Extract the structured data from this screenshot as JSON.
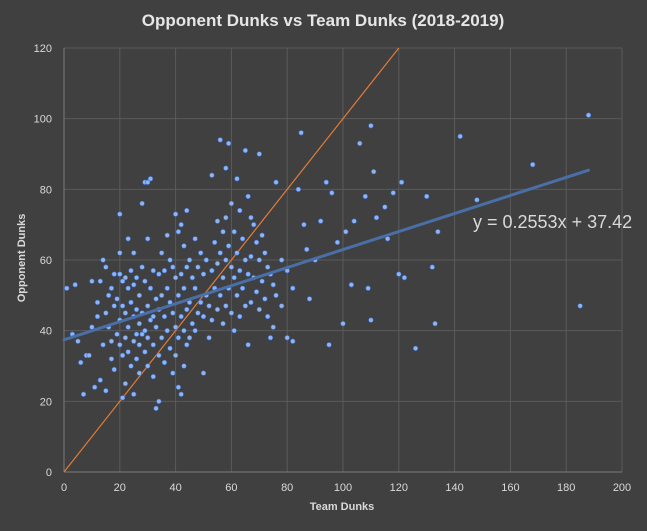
{
  "chart_data": {
    "type": "scatter",
    "title": "Opponent Dunks vs Team Dunks (2018-2019)",
    "xlabel": "Team Dunks",
    "ylabel": "Opponent Dunks",
    "xlim": [
      0,
      200
    ],
    "ylim": [
      0,
      120
    ],
    "xticks": [
      "0",
      "20",
      "40",
      "60",
      "80",
      "100",
      "120",
      "140",
      "160",
      "180",
      "200"
    ],
    "yticks": [
      "0",
      "20",
      "40",
      "60",
      "80",
      "100",
      "120"
    ],
    "grid": true,
    "legend": "none",
    "colors": {
      "points": "#8fb4f0",
      "trendline": "#4a6fa8",
      "reference_line": "#e07b39",
      "background": "#404040"
    },
    "trendline": {
      "type": "linear",
      "slope": 0.2553,
      "intercept": 37.42,
      "equation": "y = 0.2553x + 37.42"
    },
    "reference_line": {
      "type": "identity",
      "from": [
        0,
        0
      ],
      "to": [
        120,
        120
      ]
    },
    "points": [
      [
        1,
        52
      ],
      [
        3,
        39
      ],
      [
        4,
        53
      ],
      [
        5,
        37
      ],
      [
        6,
        31
      ],
      [
        7,
        22
      ],
      [
        8,
        33
      ],
      [
        9,
        33
      ],
      [
        10,
        54
      ],
      [
        10,
        41
      ],
      [
        11,
        24
      ],
      [
        12,
        48
      ],
      [
        12,
        44
      ],
      [
        13,
        54
      ],
      [
        13,
        26
      ],
      [
        14,
        60
      ],
      [
        14,
        36
      ],
      [
        15,
        58
      ],
      [
        15,
        45
      ],
      [
        15,
        23
      ],
      [
        16,
        50
      ],
      [
        16,
        41
      ],
      [
        17,
        52
      ],
      [
        17,
        37
      ],
      [
        17,
        32
      ],
      [
        18,
        56
      ],
      [
        18,
        47
      ],
      [
        18,
        29
      ],
      [
        19,
        49
      ],
      [
        19,
        39
      ],
      [
        20,
        73
      ],
      [
        20,
        62
      ],
      [
        20,
        56
      ],
      [
        20,
        43
      ],
      [
        20,
        36
      ],
      [
        21,
        54
      ],
      [
        21,
        47
      ],
      [
        21,
        33
      ],
      [
        21,
        21
      ],
      [
        22,
        55
      ],
      [
        22,
        45
      ],
      [
        22,
        38
      ],
      [
        22,
        25
      ],
      [
        23,
        66
      ],
      [
        23,
        52
      ],
      [
        23,
        41
      ],
      [
        23,
        34
      ],
      [
        24,
        57
      ],
      [
        24,
        48
      ],
      [
        24,
        30
      ],
      [
        25,
        62
      ],
      [
        25,
        53
      ],
      [
        25,
        44
      ],
      [
        25,
        37
      ],
      [
        25,
        22
      ],
      [
        26,
        55
      ],
      [
        26,
        46
      ],
      [
        26,
        39
      ],
      [
        26,
        32
      ],
      [
        27,
        50
      ],
      [
        27,
        42
      ],
      [
        27,
        36
      ],
      [
        27,
        28
      ],
      [
        28,
        76
      ],
      [
        28,
        58
      ],
      [
        28,
        45
      ],
      [
        28,
        39
      ],
      [
        29,
        82
      ],
      [
        29,
        54
      ],
      [
        29,
        40
      ],
      [
        29,
        34
      ],
      [
        30,
        82
      ],
      [
        30,
        66
      ],
      [
        30,
        47
      ],
      [
        30,
        38
      ],
      [
        30,
        30
      ],
      [
        31,
        83
      ],
      [
        31,
        52
      ],
      [
        31,
        43
      ],
      [
        32,
        57
      ],
      [
        32,
        44
      ],
      [
        32,
        36
      ],
      [
        32,
        27
      ],
      [
        33,
        49
      ],
      [
        33,
        41
      ],
      [
        33,
        18
      ],
      [
        34,
        56
      ],
      [
        34,
        46
      ],
      [
        34,
        33
      ],
      [
        34,
        20
      ],
      [
        35,
        62
      ],
      [
        35,
        50
      ],
      [
        35,
        38
      ],
      [
        36,
        57
      ],
      [
        36,
        44
      ],
      [
        36,
        31
      ],
      [
        37,
        67
      ],
      [
        37,
        52
      ],
      [
        37,
        40
      ],
      [
        38,
        60
      ],
      [
        38,
        48
      ],
      [
        38,
        35
      ],
      [
        39,
        58
      ],
      [
        39,
        45
      ],
      [
        39,
        28
      ],
      [
        40,
        73
      ],
      [
        40,
        55
      ],
      [
        40,
        41
      ],
      [
        40,
        33
      ],
      [
        41,
        68
      ],
      [
        41,
        50
      ],
      [
        41,
        38
      ],
      [
        41,
        24
      ],
      [
        42,
        70
      ],
      [
        42,
        56
      ],
      [
        42,
        44
      ],
      [
        42,
        22
      ],
      [
        43,
        64
      ],
      [
        43,
        52
      ],
      [
        43,
        40
      ],
      [
        43,
        30
      ],
      [
        44,
        74
      ],
      [
        44,
        58
      ],
      [
        44,
        46
      ],
      [
        44,
        36
      ],
      [
        45,
        60
      ],
      [
        45,
        48
      ],
      [
        45,
        38
      ],
      [
        46,
        55
      ],
      [
        46,
        42
      ],
      [
        47,
        66
      ],
      [
        47,
        52
      ],
      [
        47,
        40
      ],
      [
        48,
        58
      ],
      [
        48,
        45
      ],
      [
        49,
        62
      ],
      [
        49,
        48
      ],
      [
        50,
        56
      ],
      [
        50,
        44
      ],
      [
        50,
        28
      ],
      [
        51,
        60
      ],
      [
        51,
        50
      ],
      [
        52,
        47
      ],
      [
        52,
        38
      ],
      [
        53,
        84
      ],
      [
        53,
        57
      ],
      [
        53,
        43
      ],
      [
        54,
        65
      ],
      [
        54,
        52
      ],
      [
        55,
        71
      ],
      [
        55,
        59
      ],
      [
        55,
        46
      ],
      [
        56,
        94
      ],
      [
        56,
        62
      ],
      [
        56,
        50
      ],
      [
        57,
        68
      ],
      [
        57,
        55
      ],
      [
        57,
        42
      ],
      [
        58,
        86
      ],
      [
        58,
        72
      ],
      [
        58,
        60
      ],
      [
        58,
        47
      ],
      [
        59,
        93
      ],
      [
        59,
        64
      ],
      [
        59,
        52
      ],
      [
        60,
        76
      ],
      [
        60,
        58
      ],
      [
        60,
        45
      ],
      [
        61,
        68
      ],
      [
        61,
        55
      ],
      [
        61,
        40
      ],
      [
        62,
        83
      ],
      [
        62,
        62
      ],
      [
        62,
        50
      ],
      [
        63,
        74
      ],
      [
        63,
        57
      ],
      [
        63,
        44
      ],
      [
        64,
        66
      ],
      [
        64,
        52
      ],
      [
        65,
        91
      ],
      [
        65,
        60
      ],
      [
        65,
        47
      ],
      [
        66,
        78
      ],
      [
        66,
        56
      ],
      [
        66,
        36
      ],
      [
        67,
        72
      ],
      [
        67,
        61
      ],
      [
        67,
        48
      ],
      [
        68,
        70
      ],
      [
        68,
        55
      ],
      [
        69,
        65
      ],
      [
        69,
        51
      ],
      [
        70,
        90
      ],
      [
        70,
        60
      ],
      [
        70,
        46
      ],
      [
        71,
        67
      ],
      [
        71,
        54
      ],
      [
        72,
        62
      ],
      [
        72,
        49
      ],
      [
        73,
        58
      ],
      [
        73,
        44
      ],
      [
        74,
        56
      ],
      [
        74,
        38
      ],
      [
        75,
        53
      ],
      [
        75,
        41
      ],
      [
        76,
        82
      ],
      [
        76,
        50
      ],
      [
        78,
        60
      ],
      [
        78,
        47
      ],
      [
        80,
        57
      ],
      [
        80,
        38
      ],
      [
        82,
        52
      ],
      [
        82,
        37
      ],
      [
        84,
        80
      ],
      [
        85,
        96
      ],
      [
        86,
        70
      ],
      [
        87,
        63
      ],
      [
        88,
        49
      ],
      [
        90,
        60
      ],
      [
        92,
        71
      ],
      [
        94,
        82
      ],
      [
        95,
        36
      ],
      [
        96,
        79
      ],
      [
        98,
        65
      ],
      [
        100,
        42
      ],
      [
        101,
        68
      ],
      [
        103,
        53
      ],
      [
        104,
        71
      ],
      [
        106,
        93
      ],
      [
        108,
        78
      ],
      [
        109,
        52
      ],
      [
        110,
        98
      ],
      [
        110,
        43
      ],
      [
        111,
        85
      ],
      [
        112,
        72
      ],
      [
        115,
        75
      ],
      [
        116,
        66
      ],
      [
        118,
        79
      ],
      [
        120,
        56
      ],
      [
        121,
        82
      ],
      [
        122,
        55
      ],
      [
        126,
        35
      ],
      [
        130,
        78
      ],
      [
        132,
        58
      ],
      [
        133,
        42
      ],
      [
        134,
        68
      ],
      [
        142,
        95
      ],
      [
        148,
        77
      ],
      [
        168,
        87
      ],
      [
        185,
        47
      ],
      [
        188,
        101
      ]
    ]
  }
}
